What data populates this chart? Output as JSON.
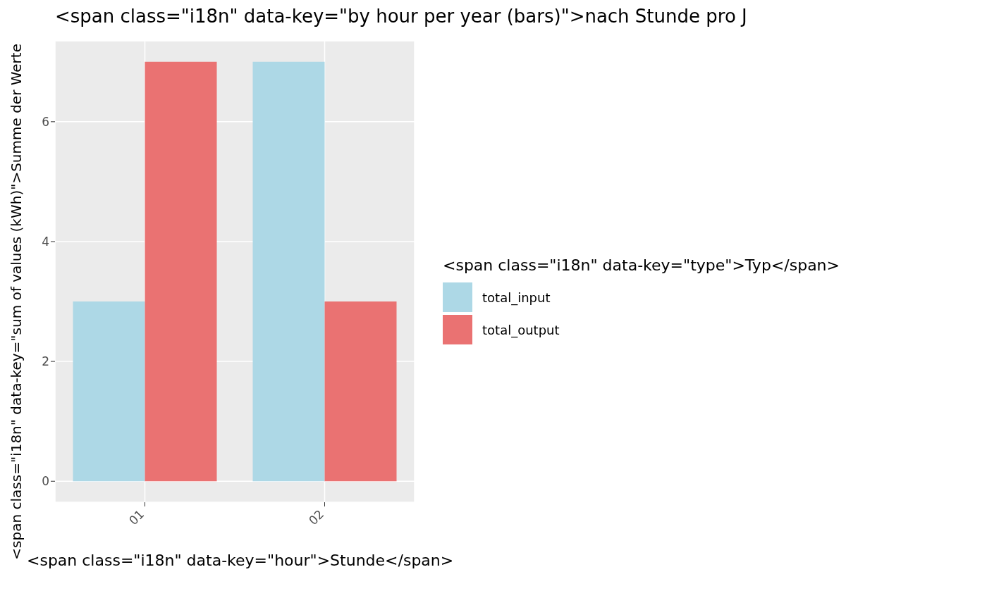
{
  "chart_data": {
    "type": "bar",
    "title": "<span class=\"i18n\" data-key=\"by hour per year (bars)\">nach Stunde pro J",
    "xlabel": "<span class=\"i18n\" data-key=\"hour\">Stunde</span>",
    "ylabel": "<span class=\"i18n\" data-key=\"sum of values (kWh)\">Summe der Werte",
    "legend_title": "<span class=\"i18n\" data-key=\"type\">Typ</span>",
    "categories": [
      "01",
      "02"
    ],
    "series": [
      {
        "name": "total_input",
        "color": "#add8e6",
        "values": [
          3,
          7
        ]
      },
      {
        "name": "total_output",
        "color": "#ea7272",
        "values": [
          7,
          3
        ]
      }
    ],
    "ylim": [
      -0.35,
      7.35
    ],
    "yticks": [
      0,
      2,
      4,
      6
    ],
    "grid": true,
    "legend": "right"
  }
}
